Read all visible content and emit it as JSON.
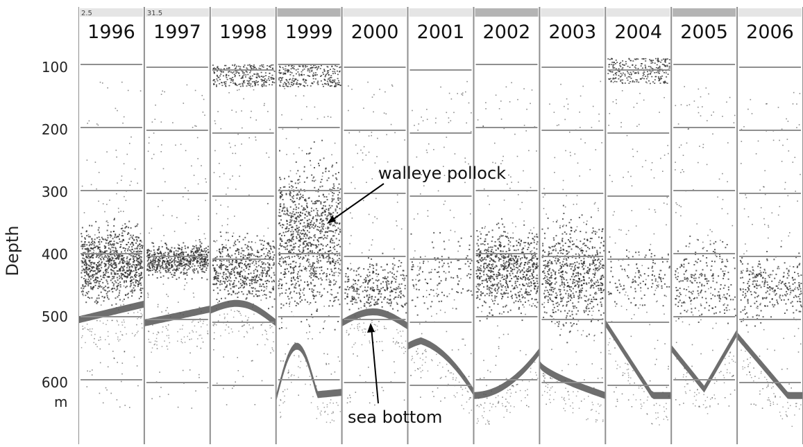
{
  "figure": {
    "y_axis": {
      "label": "Depth",
      "ticks": [
        "100",
        "200",
        "300",
        "400",
        "500",
        "600"
      ],
      "unit": "m"
    },
    "panels": [
      {
        "year": "1996",
        "tag": "2.5"
      },
      {
        "year": "1997",
        "tag": "31.5"
      },
      {
        "year": "1998",
        "tag": ""
      },
      {
        "year": "1999",
        "tag": ""
      },
      {
        "year": "2000",
        "tag": ""
      },
      {
        "year": "2001",
        "tag": ""
      },
      {
        "year": "2002",
        "tag": ""
      },
      {
        "year": "2003",
        "tag": ""
      },
      {
        "year": "2004",
        "tag": ""
      },
      {
        "year": "2005",
        "tag": ""
      },
      {
        "year": "2006",
        "tag": ""
      }
    ],
    "annotations": {
      "fish": "walleye pollock",
      "bottom": "sea bottom"
    },
    "colors": {
      "background": "#ffffff",
      "grid": "#8f8f8f",
      "dots": "#2b2b2b",
      "bottom_band": "#555555",
      "text": "#111111"
    }
  }
}
